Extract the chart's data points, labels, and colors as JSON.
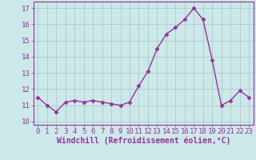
{
  "hours": [
    0,
    1,
    2,
    3,
    4,
    5,
    6,
    7,
    8,
    9,
    10,
    11,
    12,
    13,
    14,
    15,
    16,
    17,
    18,
    19,
    20,
    21,
    22,
    23
  ],
  "values": [
    11.5,
    11.0,
    10.6,
    11.2,
    11.3,
    11.2,
    11.3,
    11.2,
    11.1,
    11.0,
    11.2,
    12.2,
    13.1,
    14.5,
    15.4,
    15.8,
    16.3,
    17.0,
    16.3,
    13.8,
    11.0,
    11.3,
    11.9,
    11.5
  ],
  "line_color": "#993399",
  "marker": "D",
  "markersize": 2.5,
  "linewidth": 1.0,
  "bg_color": "#cce8e8",
  "grid_color": "#aacccc",
  "xlabel": "Windchill (Refroidissement éolien,°C)",
  "xlabel_fontsize": 7,
  "tick_fontsize": 6.5,
  "ylim": [
    9.8,
    17.4
  ],
  "yticks": [
    10,
    11,
    12,
    13,
    14,
    15,
    16,
    17
  ],
  "title_color": "#993399",
  "axis_label_color": "#993399",
  "tick_color": "#993399",
  "spine_color": "#993399"
}
